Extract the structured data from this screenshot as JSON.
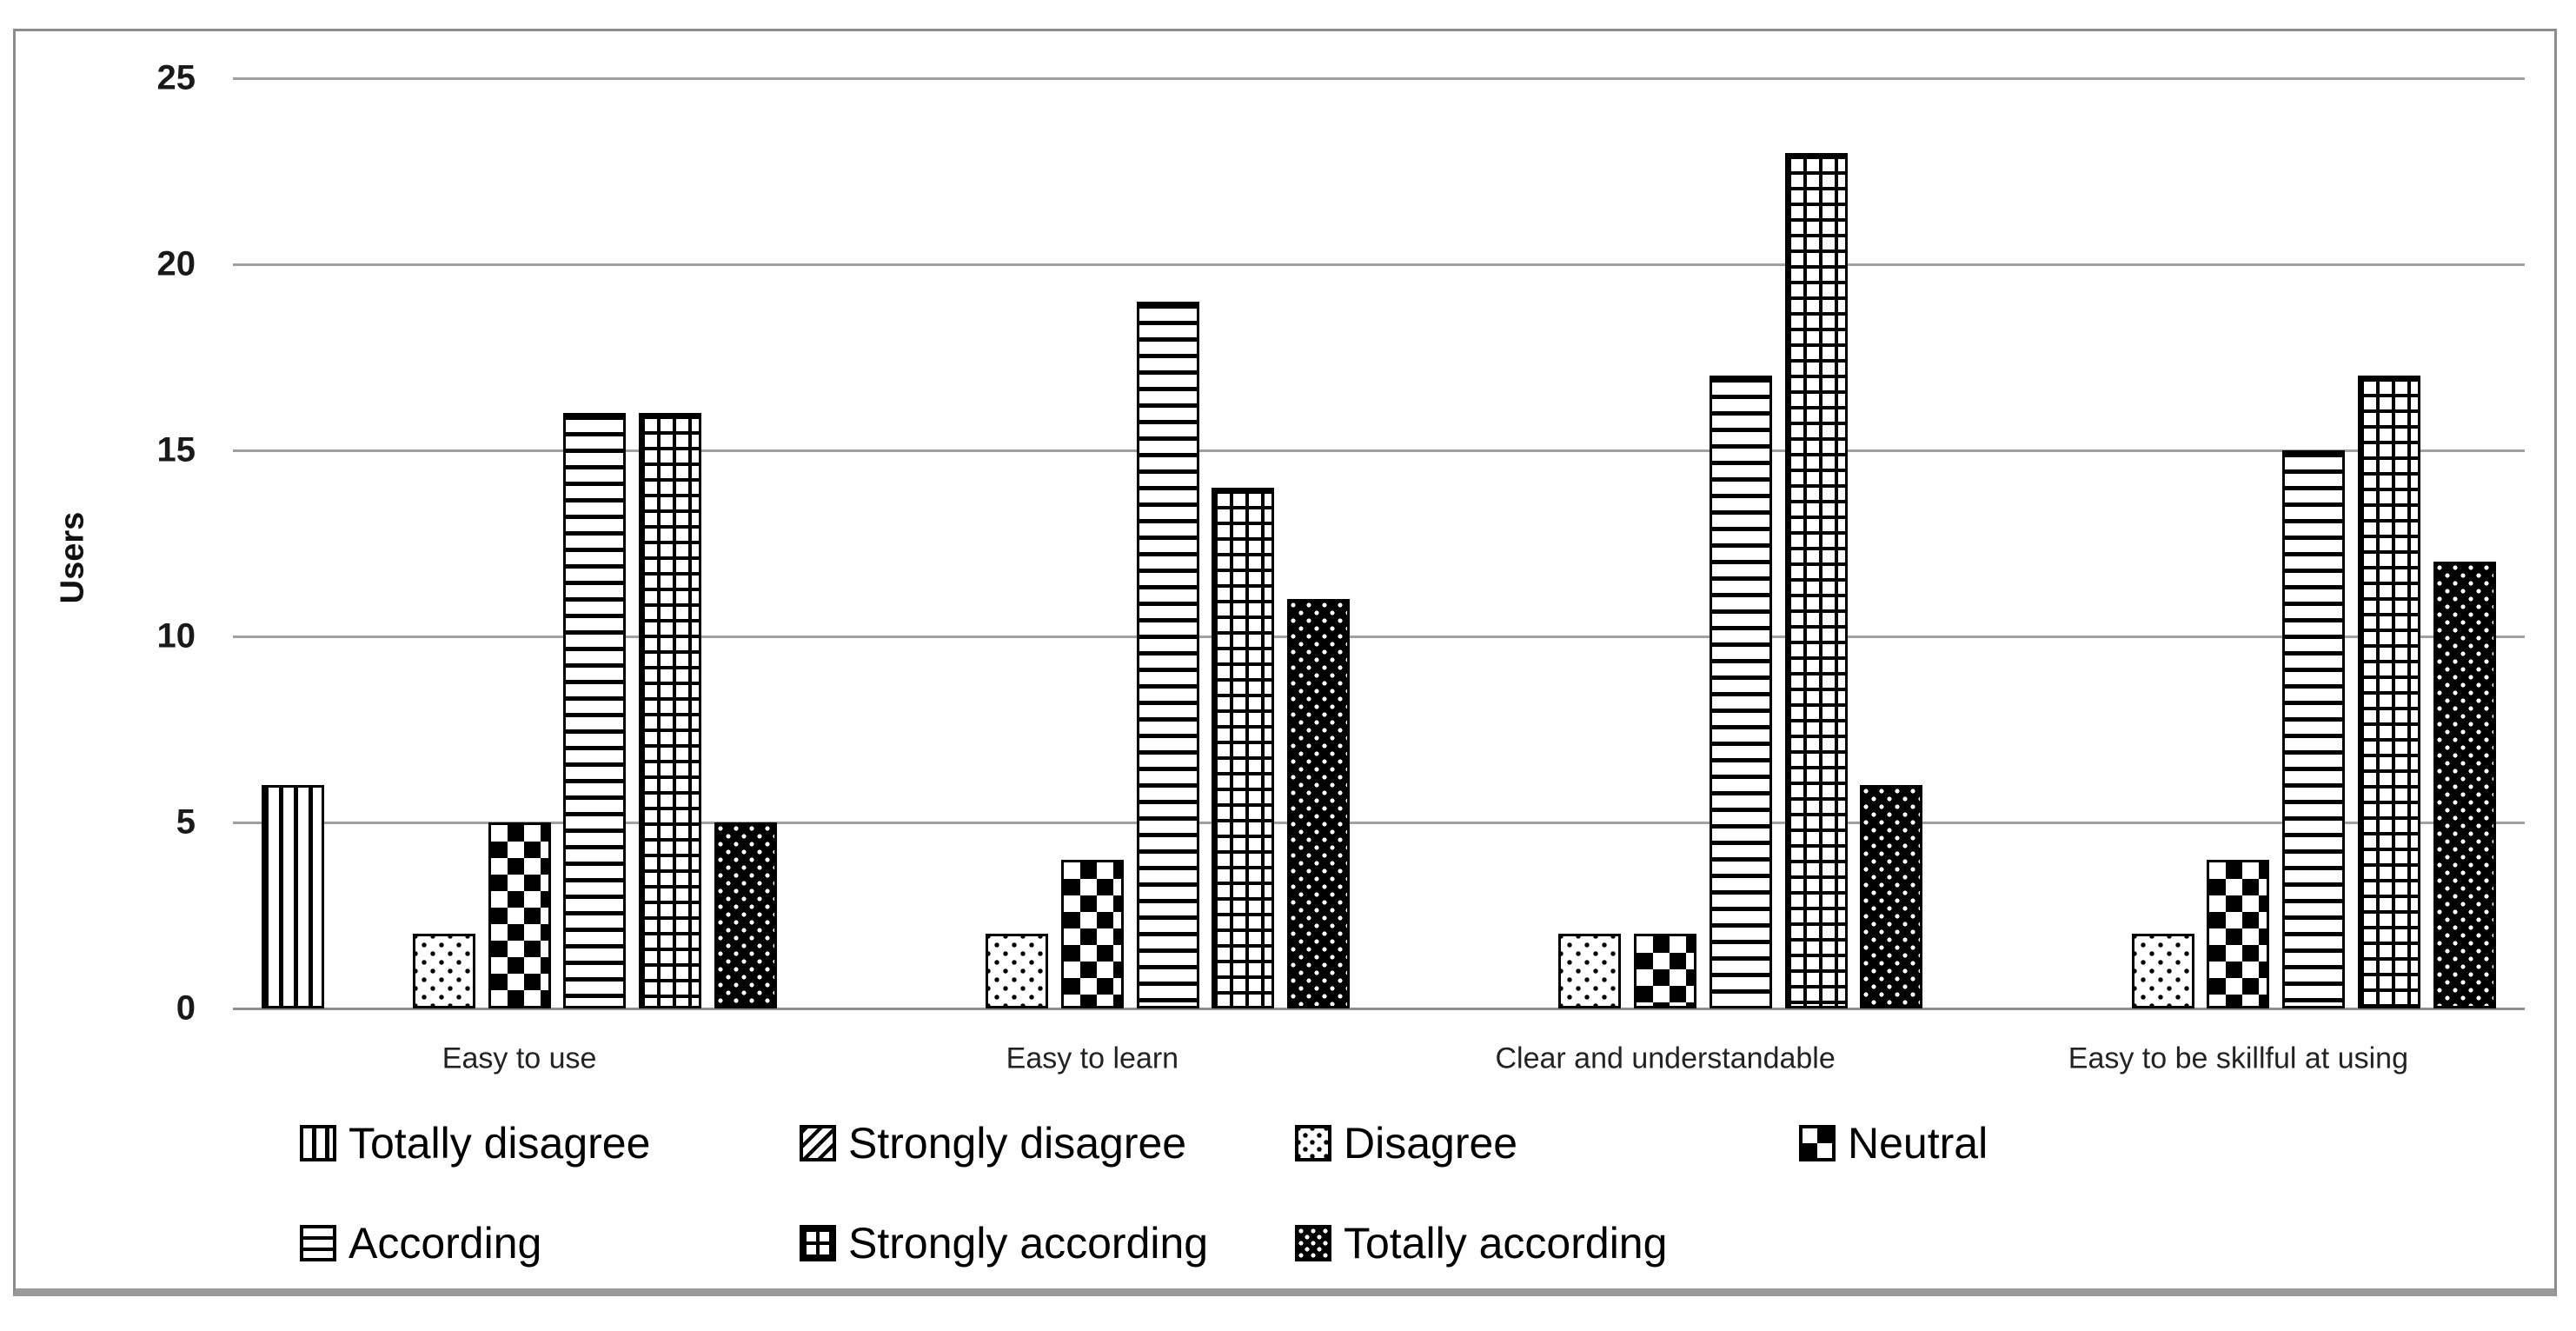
{
  "chart_data": {
    "type": "bar",
    "title": "",
    "xlabel": "",
    "ylabel": "Users",
    "ylim": [
      0,
      25
    ],
    "yticks": [
      0,
      5,
      10,
      15,
      20,
      25
    ],
    "grid": true,
    "legend_position": "bottom",
    "background": "#ffffff",
    "categories": [
      "Easy to use",
      "Easy to learn",
      "Clear and understandable",
      "Easy to be skillful at using"
    ],
    "series": [
      {
        "name": "Totally disagree",
        "pattern": "vertical-stripes",
        "values": [
          6,
          0,
          0,
          0
        ]
      },
      {
        "name": "Strongly disagree",
        "pattern": "diagonal-hatch",
        "values": [
          0,
          0,
          0,
          0
        ]
      },
      {
        "name": "Disagree",
        "pattern": "dots-light",
        "values": [
          2,
          2,
          2,
          2
        ]
      },
      {
        "name": "Neutral",
        "pattern": "checkerboard",
        "values": [
          5,
          4,
          2,
          4
        ]
      },
      {
        "name": "According",
        "pattern": "horizontal-stripes",
        "values": [
          16,
          19,
          17,
          15
        ]
      },
      {
        "name": "Strongly according",
        "pattern": "grid",
        "values": [
          16,
          14,
          23,
          17
        ]
      },
      {
        "name": "Totally according",
        "pattern": "dots-dark",
        "values": [
          5,
          11,
          6,
          12
        ]
      }
    ],
    "colors": {
      "bar_fill": "#000000",
      "bar_background": "#ffffff",
      "gridline": "#a0a0a0",
      "frame": "#8c8c8c",
      "text": "#1a1a1a"
    }
  }
}
